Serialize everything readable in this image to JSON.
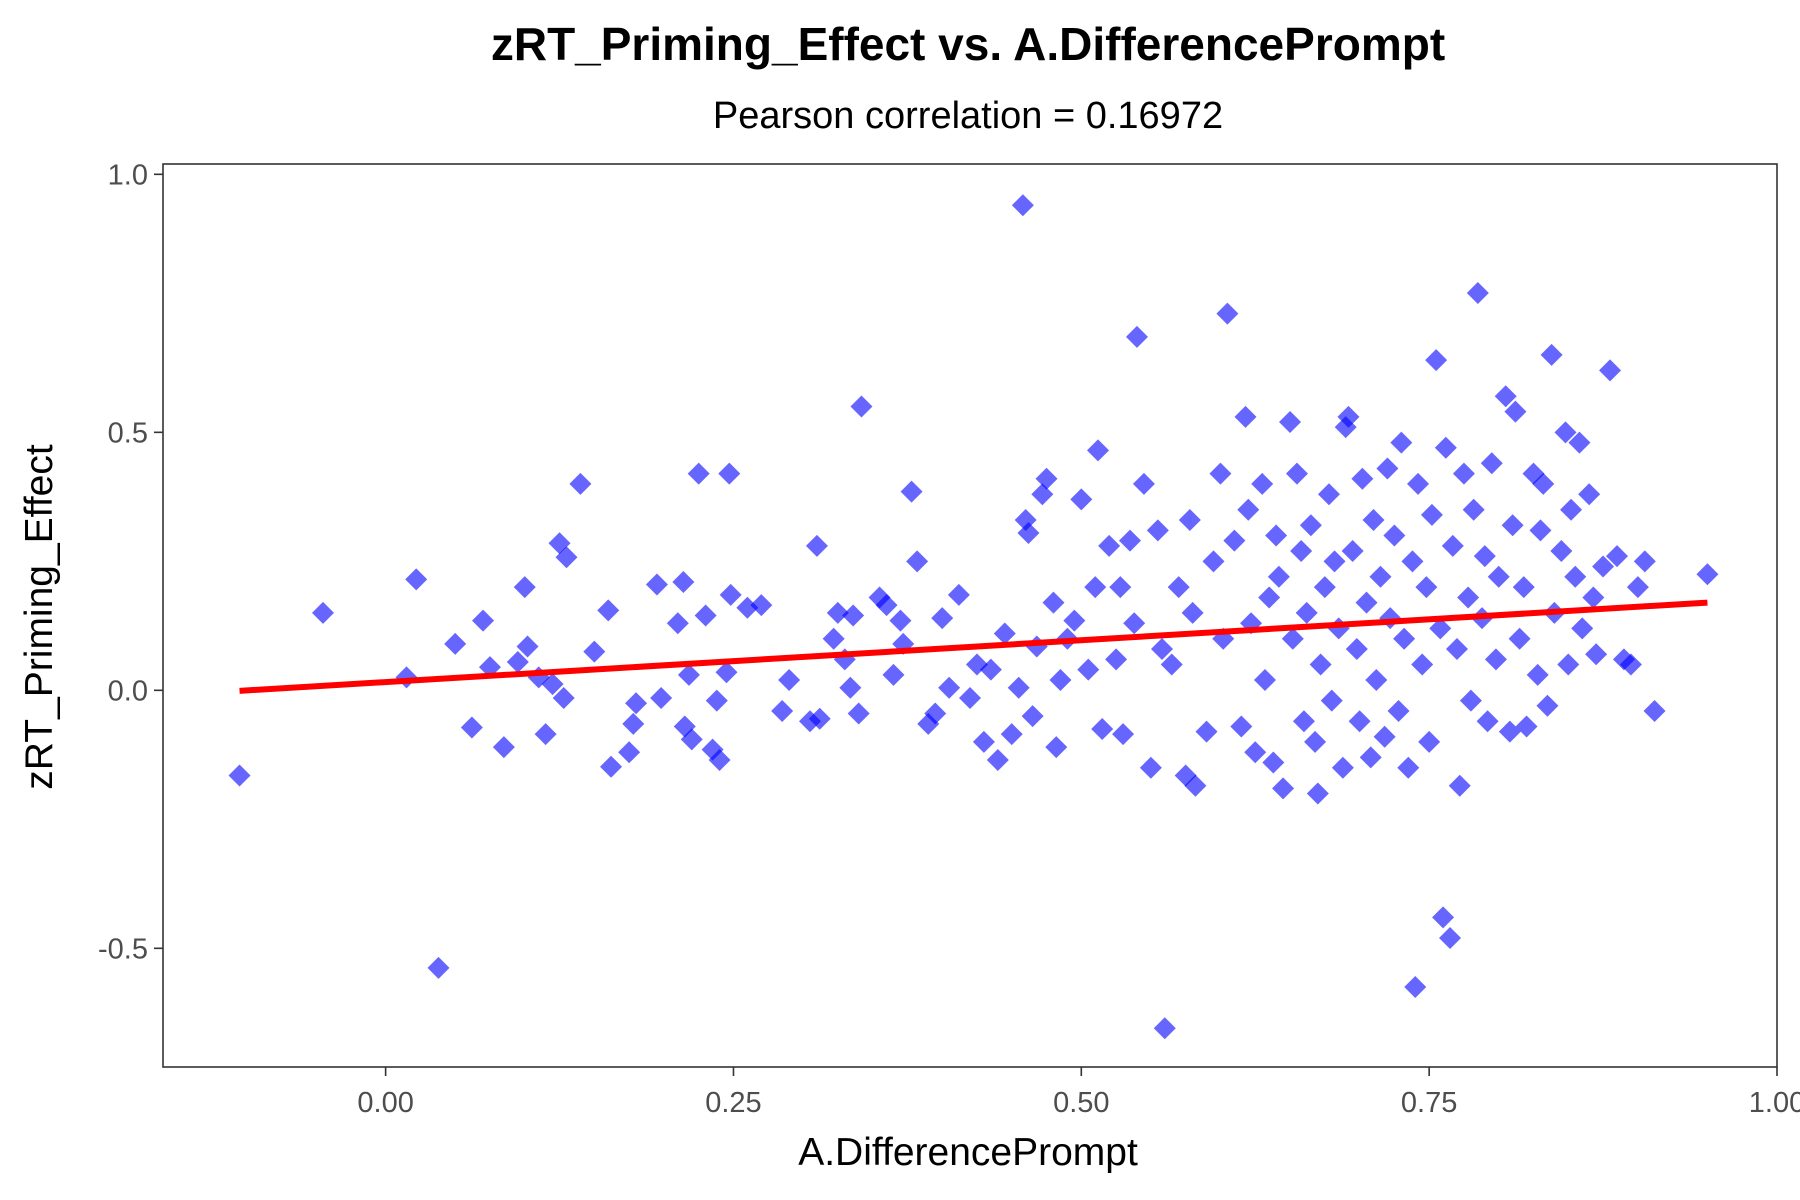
{
  "chart_data": {
    "type": "scatter",
    "title": "zRT_Priming_Effect vs. A.DifferencePrompt",
    "subtitle": "Pearson correlation = 0.16972",
    "xlabel": "A.DifferencePrompt",
    "ylabel": "zRT_Priming_Effect",
    "xlim": [
      -0.16,
      1.0
    ],
    "ylim": [
      -0.73,
      1.02
    ],
    "x_ticks": [
      0.0,
      0.25,
      0.5,
      0.75,
      1.0
    ],
    "x_tick_labels": [
      "0.00",
      "0.25",
      "0.50",
      "0.75",
      "1.00"
    ],
    "y_ticks": [
      -0.5,
      0.0,
      0.5,
      1.0
    ],
    "y_tick_labels": [
      "-0.5",
      "0.0",
      "0.5",
      "1.0"
    ],
    "grid": false,
    "point_color": "#0000ff",
    "point_opacity": 0.6,
    "point_shape": "diamond",
    "fit_line_color": "#ff0000",
    "fit_line": {
      "x": [
        -0.105,
        0.95
      ],
      "y": [
        -0.001,
        0.17
      ]
    },
    "series": [
      {
        "points": [
          [
            -0.105,
            -0.165
          ],
          [
            -0.045,
            0.15
          ],
          [
            0.015,
            0.025
          ],
          [
            0.022,
            0.215
          ],
          [
            0.038,
            -0.538
          ],
          [
            0.05,
            0.09
          ],
          [
            0.062,
            -0.072
          ],
          [
            0.07,
            0.135
          ],
          [
            0.075,
            0.045
          ],
          [
            0.085,
            -0.11
          ],
          [
            0.095,
            0.055
          ],
          [
            0.1,
            0.2
          ],
          [
            0.102,
            0.085
          ],
          [
            0.11,
            0.025
          ],
          [
            0.115,
            -0.085
          ],
          [
            0.12,
            0.012
          ],
          [
            0.125,
            0.285
          ],
          [
            0.128,
            -0.015
          ],
          [
            0.13,
            0.258
          ],
          [
            0.14,
            0.4
          ],
          [
            0.15,
            0.075
          ],
          [
            0.16,
            0.155
          ],
          [
            0.162,
            -0.148
          ],
          [
            0.175,
            -0.12
          ],
          [
            0.178,
            -0.065
          ],
          [
            0.18,
            -0.025
          ],
          [
            0.195,
            0.205
          ],
          [
            0.198,
            -0.015
          ],
          [
            0.21,
            0.13
          ],
          [
            0.214,
            0.21
          ],
          [
            0.215,
            -0.07
          ],
          [
            0.218,
            0.03
          ],
          [
            0.22,
            -0.095
          ],
          [
            0.225,
            0.42
          ],
          [
            0.23,
            0.145
          ],
          [
            0.235,
            -0.115
          ],
          [
            0.238,
            -0.02
          ],
          [
            0.24,
            -0.135
          ],
          [
            0.245,
            0.035
          ],
          [
            0.247,
            0.42
          ],
          [
            0.248,
            0.185
          ],
          [
            0.26,
            0.16
          ],
          [
            0.27,
            0.165
          ],
          [
            0.285,
            -0.04
          ],
          [
            0.29,
            0.02
          ],
          [
            0.305,
            -0.06
          ],
          [
            0.31,
            0.28
          ],
          [
            0.312,
            -0.055
          ],
          [
            0.322,
            0.1
          ],
          [
            0.325,
            0.15
          ],
          [
            0.33,
            0.06
          ],
          [
            0.334,
            0.005
          ],
          [
            0.336,
            0.145
          ],
          [
            0.34,
            -0.045
          ],
          [
            0.342,
            0.55
          ],
          [
            0.355,
            0.18
          ],
          [
            0.36,
            0.165
          ],
          [
            0.365,
            0.03
          ],
          [
            0.37,
            0.135
          ],
          [
            0.372,
            0.09
          ],
          [
            0.378,
            0.385
          ],
          [
            0.382,
            0.25
          ],
          [
            0.39,
            -0.065
          ],
          [
            0.395,
            -0.045
          ],
          [
            0.4,
            0.14
          ],
          [
            0.405,
            0.005
          ],
          [
            0.412,
            0.185
          ],
          [
            0.42,
            -0.015
          ],
          [
            0.425,
            0.05
          ],
          [
            0.43,
            -0.1
          ],
          [
            0.435,
            0.04
          ],
          [
            0.44,
            -0.135
          ],
          [
            0.445,
            0.11
          ],
          [
            0.45,
            -0.085
          ],
          [
            0.455,
            0.005
          ],
          [
            0.458,
            0.94
          ],
          [
            0.46,
            0.33
          ],
          [
            0.462,
            0.305
          ],
          [
            0.465,
            -0.05
          ],
          [
            0.468,
            0.085
          ],
          [
            0.472,
            0.38
          ],
          [
            0.475,
            0.41
          ],
          [
            0.48,
            0.17
          ],
          [
            0.482,
            -0.11
          ],
          [
            0.485,
            0.02
          ],
          [
            0.49,
            0.1
          ],
          [
            0.495,
            0.135
          ],
          [
            0.5,
            0.37
          ],
          [
            0.505,
            0.04
          ],
          [
            0.51,
            0.2
          ],
          [
            0.512,
            0.465
          ],
          [
            0.515,
            -0.075
          ],
          [
            0.52,
            0.28
          ],
          [
            0.525,
            0.06
          ],
          [
            0.528,
            0.2
          ],
          [
            0.53,
            -0.085
          ],
          [
            0.535,
            0.29
          ],
          [
            0.538,
            0.13
          ],
          [
            0.54,
            0.685
          ],
          [
            0.545,
            0.4
          ],
          [
            0.55,
            -0.15
          ],
          [
            0.555,
            0.31
          ],
          [
            0.558,
            0.08
          ],
          [
            0.56,
            -0.655
          ],
          [
            0.565,
            0.05
          ],
          [
            0.57,
            0.2
          ],
          [
            0.575,
            -0.165
          ],
          [
            0.578,
            0.33
          ],
          [
            0.58,
            0.15
          ],
          [
            0.582,
            -0.185
          ],
          [
            0.59,
            -0.08
          ],
          [
            0.595,
            0.25
          ],
          [
            0.6,
            0.42
          ],
          [
            0.602,
            0.1
          ],
          [
            0.605,
            0.73
          ],
          [
            0.61,
            0.29
          ],
          [
            0.615,
            -0.07
          ],
          [
            0.618,
            0.53
          ],
          [
            0.62,
            0.35
          ],
          [
            0.622,
            0.13
          ],
          [
            0.625,
            -0.12
          ],
          [
            0.63,
            0.4
          ],
          [
            0.632,
            0.02
          ],
          [
            0.635,
            0.18
          ],
          [
            0.638,
            -0.14
          ],
          [
            0.64,
            0.3
          ],
          [
            0.642,
            0.22
          ],
          [
            0.645,
            -0.19
          ],
          [
            0.65,
            0.52
          ],
          [
            0.652,
            0.1
          ],
          [
            0.655,
            0.42
          ],
          [
            0.658,
            0.27
          ],
          [
            0.66,
            -0.06
          ],
          [
            0.662,
            0.15
          ],
          [
            0.665,
            0.32
          ],
          [
            0.668,
            -0.1
          ],
          [
            0.67,
            -0.2
          ],
          [
            0.672,
            0.05
          ],
          [
            0.675,
            0.2
          ],
          [
            0.678,
            0.38
          ],
          [
            0.68,
            -0.02
          ],
          [
            0.682,
            0.25
          ],
          [
            0.685,
            0.12
          ],
          [
            0.688,
            -0.15
          ],
          [
            0.69,
            0.51
          ],
          [
            0.692,
            0.53
          ],
          [
            0.695,
            0.27
          ],
          [
            0.698,
            0.08
          ],
          [
            0.7,
            -0.06
          ],
          [
            0.702,
            0.41
          ],
          [
            0.705,
            0.17
          ],
          [
            0.708,
            -0.13
          ],
          [
            0.71,
            0.33
          ],
          [
            0.712,
            0.02
          ],
          [
            0.715,
            0.22
          ],
          [
            0.718,
            -0.09
          ],
          [
            0.72,
            0.43
          ],
          [
            0.722,
            0.14
          ],
          [
            0.725,
            0.3
          ],
          [
            0.728,
            -0.04
          ],
          [
            0.73,
            0.48
          ],
          [
            0.732,
            0.1
          ],
          [
            0.735,
            -0.15
          ],
          [
            0.738,
            0.25
          ],
          [
            0.74,
            -0.575
          ],
          [
            0.742,
            0.4
          ],
          [
            0.745,
            0.05
          ],
          [
            0.748,
            0.2
          ],
          [
            0.75,
            -0.1
          ],
          [
            0.752,
            0.34
          ],
          [
            0.755,
            0.64
          ],
          [
            0.758,
            0.12
          ],
          [
            0.76,
            -0.44
          ],
          [
            0.762,
            0.47
          ],
          [
            0.765,
            -0.48
          ],
          [
            0.767,
            0.28
          ],
          [
            0.77,
            0.08
          ],
          [
            0.772,
            -0.185
          ],
          [
            0.775,
            0.42
          ],
          [
            0.778,
            0.18
          ],
          [
            0.78,
            -0.02
          ],
          [
            0.782,
            0.35
          ],
          [
            0.785,
            0.77
          ],
          [
            0.788,
            0.14
          ],
          [
            0.79,
            0.26
          ],
          [
            0.792,
            -0.06
          ],
          [
            0.795,
            0.44
          ],
          [
            0.798,
            0.06
          ],
          [
            0.8,
            0.22
          ],
          [
            0.805,
            0.57
          ],
          [
            0.808,
            -0.08
          ],
          [
            0.81,
            0.32
          ],
          [
            0.812,
            0.54
          ],
          [
            0.815,
            0.1
          ],
          [
            0.818,
            0.2
          ],
          [
            0.82,
            -0.07
          ],
          [
            0.825,
            0.42
          ],
          [
            0.828,
            0.03
          ],
          [
            0.83,
            0.31
          ],
          [
            0.832,
            0.4
          ],
          [
            0.835,
            -0.03
          ],
          [
            0.838,
            0.65
          ],
          [
            0.84,
            0.15
          ],
          [
            0.845,
            0.27
          ],
          [
            0.848,
            0.5
          ],
          [
            0.85,
            0.05
          ],
          [
            0.852,
            0.35
          ],
          [
            0.855,
            0.22
          ],
          [
            0.858,
            0.48
          ],
          [
            0.86,
            0.12
          ],
          [
            0.865,
            0.38
          ],
          [
            0.868,
            0.18
          ],
          [
            0.87,
            0.07
          ],
          [
            0.875,
            0.24
          ],
          [
            0.88,
            0.62
          ],
          [
            0.885,
            0.26
          ],
          [
            0.89,
            0.06
          ],
          [
            0.895,
            0.05
          ],
          [
            0.9,
            0.2
          ],
          [
            0.905,
            0.25
          ],
          [
            0.912,
            -0.04
          ],
          [
            0.95,
            0.225
          ]
        ]
      }
    ]
  }
}
